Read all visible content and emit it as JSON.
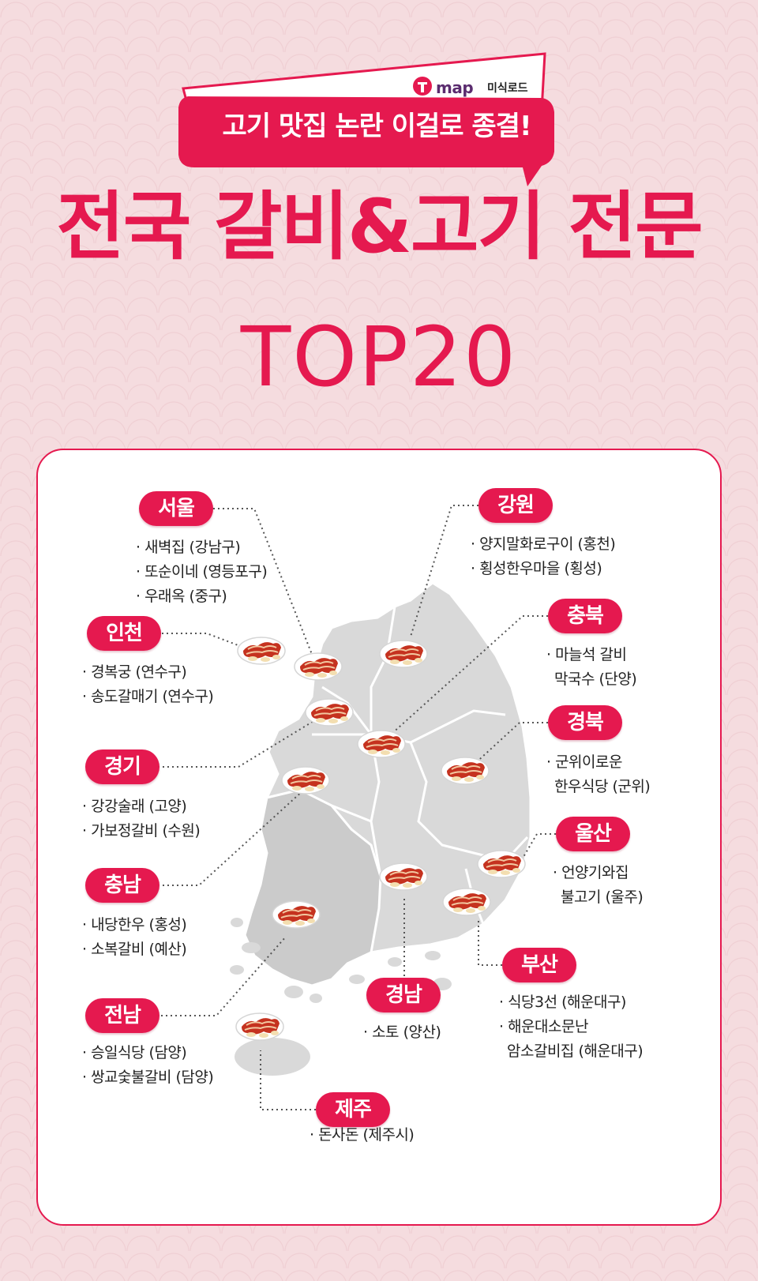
{
  "header": {
    "brand": "map",
    "brand_sub": "미식로드",
    "tagline": "고기 맛집 논란 이걸로 종결!",
    "title": "전국 갈비&고기 전문",
    "subtitle": "TOP20"
  },
  "colors": {
    "accent": "#e5194f",
    "background": "#f5dcdf",
    "map_fill": "#d9d9d9",
    "map_border": "#ffffff"
  },
  "regions": [
    {
      "name": "서울",
      "items": [
        "· 새벽집 (강남구)",
        "· 또순이네 (영등포구)",
        "· 우래옥 (중구)"
      ]
    },
    {
      "name": "강원",
      "items": [
        "· 양지말화로구이 (홍천)",
        "· 횡성한우마을 (횡성)"
      ]
    },
    {
      "name": "충북",
      "items": [
        "· 마늘석 갈비",
        "막국수 (단양)"
      ]
    },
    {
      "name": "인천",
      "items": [
        "· 경복궁 (연수구)",
        "· 송도갈매기 (연수구)"
      ]
    },
    {
      "name": "경북",
      "items": [
        "· 군위이로운",
        "한우식당 (군위)"
      ]
    },
    {
      "name": "경기",
      "items": [
        "· 강강술래 (고양)",
        "· 가보정갈비 (수원)"
      ]
    },
    {
      "name": "울산",
      "items": [
        "· 언양기와집",
        "불고기 (울주)"
      ]
    },
    {
      "name": "충남",
      "items": [
        "· 내당한우 (홍성)",
        "· 소복갈비 (예산)"
      ]
    },
    {
      "name": "부산",
      "items": [
        "· 식당3선 (해운대구)",
        "· 해운대소문난",
        "암소갈비집 (해운대구)"
      ]
    },
    {
      "name": "전남",
      "items": [
        "· 승일식당 (담양)",
        "· 쌍교숯불갈비 (담양)"
      ]
    },
    {
      "name": "경남",
      "items": [
        "· 소토 (양산)"
      ]
    },
    {
      "name": "제주",
      "items": [
        "· 돈사돈 (제주시)"
      ]
    }
  ],
  "icons": {
    "logo": "tmap-logo-icon",
    "marker": "grilled-meat-icon"
  }
}
